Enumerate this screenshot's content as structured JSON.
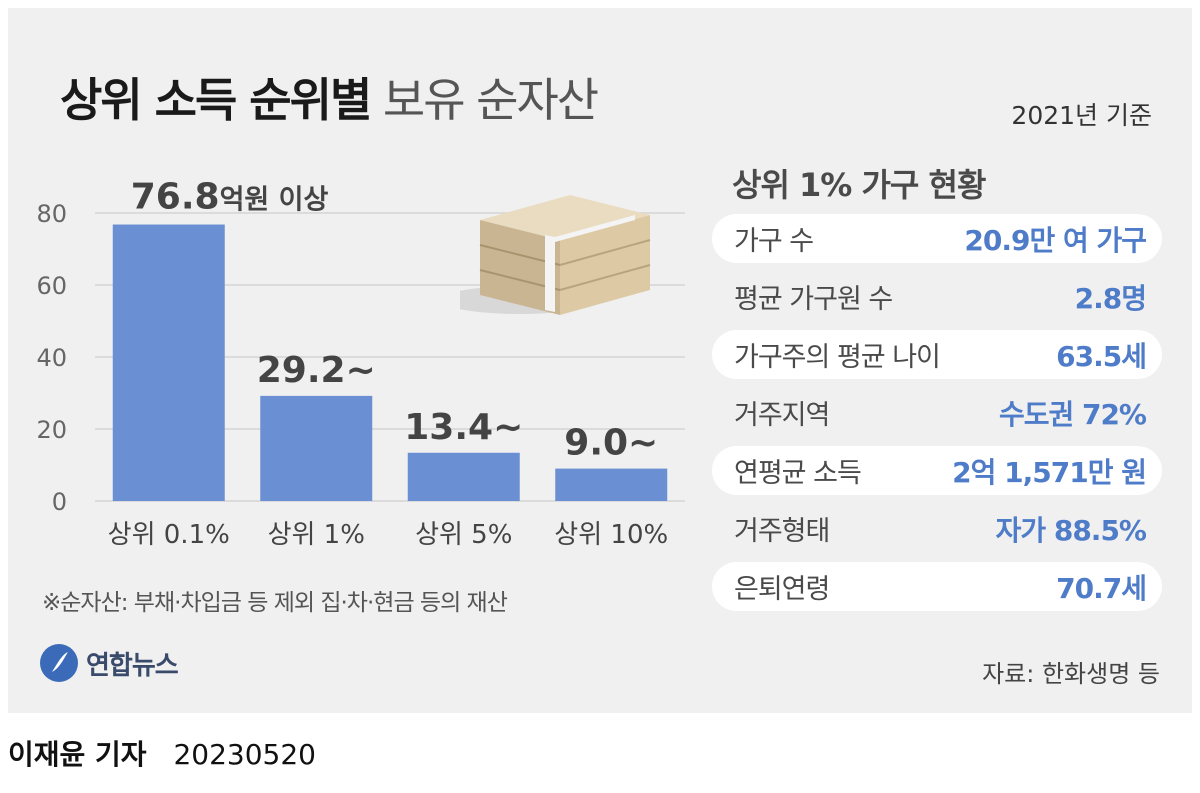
{
  "title": {
    "bold": "상위 소득 순위별",
    "light": "보유 순자산"
  },
  "basis": "2021년 기준",
  "chart_data": {
    "type": "bar",
    "categories": [
      "상위 0.1%",
      "상위 1%",
      "상위 5%",
      "상위 10%"
    ],
    "values": [
      76.8,
      29.2,
      13.4,
      9.0
    ],
    "data_labels": [
      "76.8",
      "29.2~",
      "13.4~",
      "9.0~"
    ],
    "first_label_unit": "억원 이상",
    "y_ticks": [
      0,
      20,
      40,
      60,
      80
    ],
    "ylim": [
      0,
      80
    ],
    "grid": true,
    "bar_color": "#6b8fd3"
  },
  "stats": {
    "heading": "상위 1% 가구 현황",
    "rows": [
      {
        "label": "가구 수",
        "value": "20.9만 여 가구"
      },
      {
        "label": "평균 가구원 수",
        "value": "2.8명"
      },
      {
        "label": "가구주의 평균 나이",
        "value": "63.5세"
      },
      {
        "label": "거주지역",
        "value": "수도권 72%"
      },
      {
        "label": "연평균 소득",
        "value": "2억 1,571만 원"
      },
      {
        "label": "거주형태",
        "value": "자가 88.5%"
      },
      {
        "label": "은퇴연령",
        "value": "70.7세"
      }
    ]
  },
  "note": "※순자산: 부채·차입금 등 제외 집·차·현금 등의 재산",
  "logo": {
    "name": "연합뉴스",
    "icon": "yonhap-logo-icon"
  },
  "source": "자료: 한화생명 등",
  "credit": {
    "reporter": "이재윤 기자",
    "date": "20230520"
  },
  "colors": {
    "accent": "#4f7cc8",
    "bar": "#6b8fd3",
    "panel": "#f0f0f0"
  }
}
